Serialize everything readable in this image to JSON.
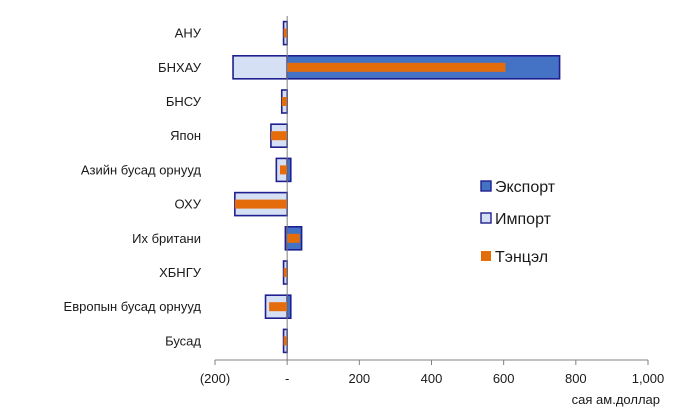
{
  "chart_data": {
    "type": "bar",
    "orientation": "horizontal",
    "categories": [
      "АНУ",
      "БНХАУ",
      "БНСУ",
      "Япон",
      "Азийн бусад орнууд",
      "ОХУ",
      "Их британи",
      "ХБНГУ",
      "Европын бусад орнууд",
      "Бусад"
    ],
    "series": [
      {
        "name": "Экспорт",
        "values": [
          0,
          755,
          0,
          0,
          10,
          0,
          40,
          0,
          10,
          0
        ]
      },
      {
        "name": "Импорт",
        "values": [
          -10,
          -150,
          -15,
          -45,
          -30,
          -145,
          -5,
          -10,
          -60,
          -10
        ]
      },
      {
        "name": "Тэнцэл",
        "values": [
          -10,
          605,
          -15,
          -45,
          -20,
          -145,
          35,
          -10,
          -50,
          -10
        ]
      }
    ],
    "x_ticks": [
      {
        "value": -200,
        "label": "(200)"
      },
      {
        "value": 0,
        "label": "-"
      },
      {
        "value": 200,
        "label": "200"
      },
      {
        "value": 400,
        "label": "400"
      },
      {
        "value": 600,
        "label": "600"
      },
      {
        "value": 800,
        "label": "800"
      },
      {
        "value": 1000,
        "label": "1,000"
      }
    ],
    "xlim": [
      -200,
      1000
    ],
    "unit_label": "сая ам.доллар",
    "legend_position": "right",
    "grid": false,
    "colors": {
      "export_fill": "#4472C4",
      "export_stroke": "#1F1F8F",
      "import_fill": "#D6E0F5",
      "import_stroke": "#1F1F8F",
      "balance_fill": "#E46C0A",
      "axis": "#808080"
    }
  }
}
